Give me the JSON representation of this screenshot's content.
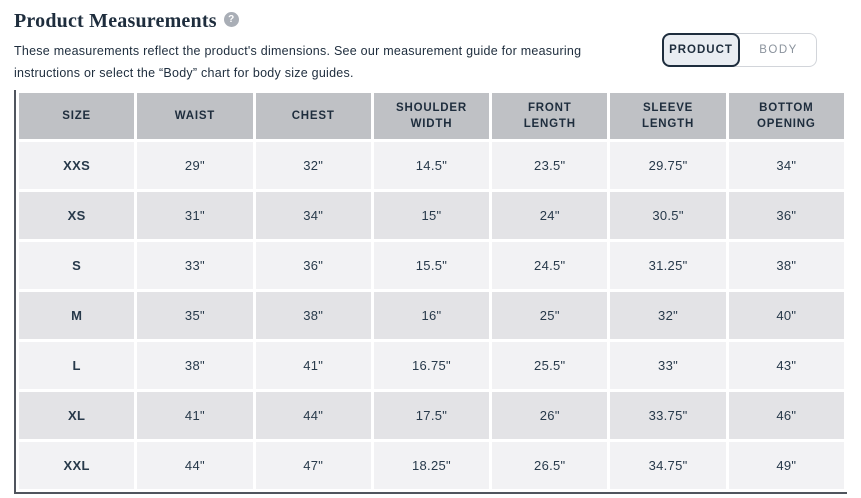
{
  "header": {
    "title": "Product Measurements",
    "info_icon_glyph": "?",
    "description_line1": "These measurements reflect the product's dimensions. See our measurement guide for measuring",
    "description_line2": "instructions or select the “Body” chart for body size guides.",
    "toggle": {
      "product_label": "PRODUCT",
      "body_label": "BODY",
      "selected": "PRODUCT"
    }
  },
  "table": {
    "columns": [
      "SIZE",
      "WAIST",
      "CHEST",
      "SHOULDER WIDTH",
      "FRONT LENGTH",
      "SLEEVE LENGTH",
      "BOTTOM OPENING"
    ],
    "rows": [
      {
        "size": "XXS",
        "values": [
          "29\"",
          "32\"",
          "14.5\"",
          "23.5\"",
          "29.75\"",
          "34\""
        ]
      },
      {
        "size": "XS",
        "values": [
          "31\"",
          "34\"",
          "15\"",
          "24\"",
          "30.5\"",
          "36\""
        ]
      },
      {
        "size": "S",
        "values": [
          "33\"",
          "36\"",
          "15.5\"",
          "24.5\"",
          "31.25\"",
          "38\""
        ]
      },
      {
        "size": "M",
        "values": [
          "35\"",
          "38\"",
          "16\"",
          "25\"",
          "32\"",
          "40\""
        ]
      },
      {
        "size": "L",
        "values": [
          "38\"",
          "41\"",
          "16.75\"",
          "25.5\"",
          "33\"",
          "43\""
        ]
      },
      {
        "size": "XL",
        "values": [
          "41\"",
          "44\"",
          "17.5\"",
          "26\"",
          "33.75\"",
          "46\""
        ]
      },
      {
        "size": "XXL",
        "values": [
          "44\"",
          "47\"",
          "18.25\"",
          "26.5\"",
          "34.75\"",
          "49\""
        ]
      }
    ]
  },
  "colors": {
    "accent_navy": "#1e2d3d",
    "header_cell_bg": "#bfc1c5",
    "row_light_bg": "#f2f2f4",
    "row_dark_bg": "#e3e3e6",
    "selected_toggle_bg": "#e9edf2",
    "axis_border": "#50555e",
    "muted_text": "#8b939d"
  }
}
